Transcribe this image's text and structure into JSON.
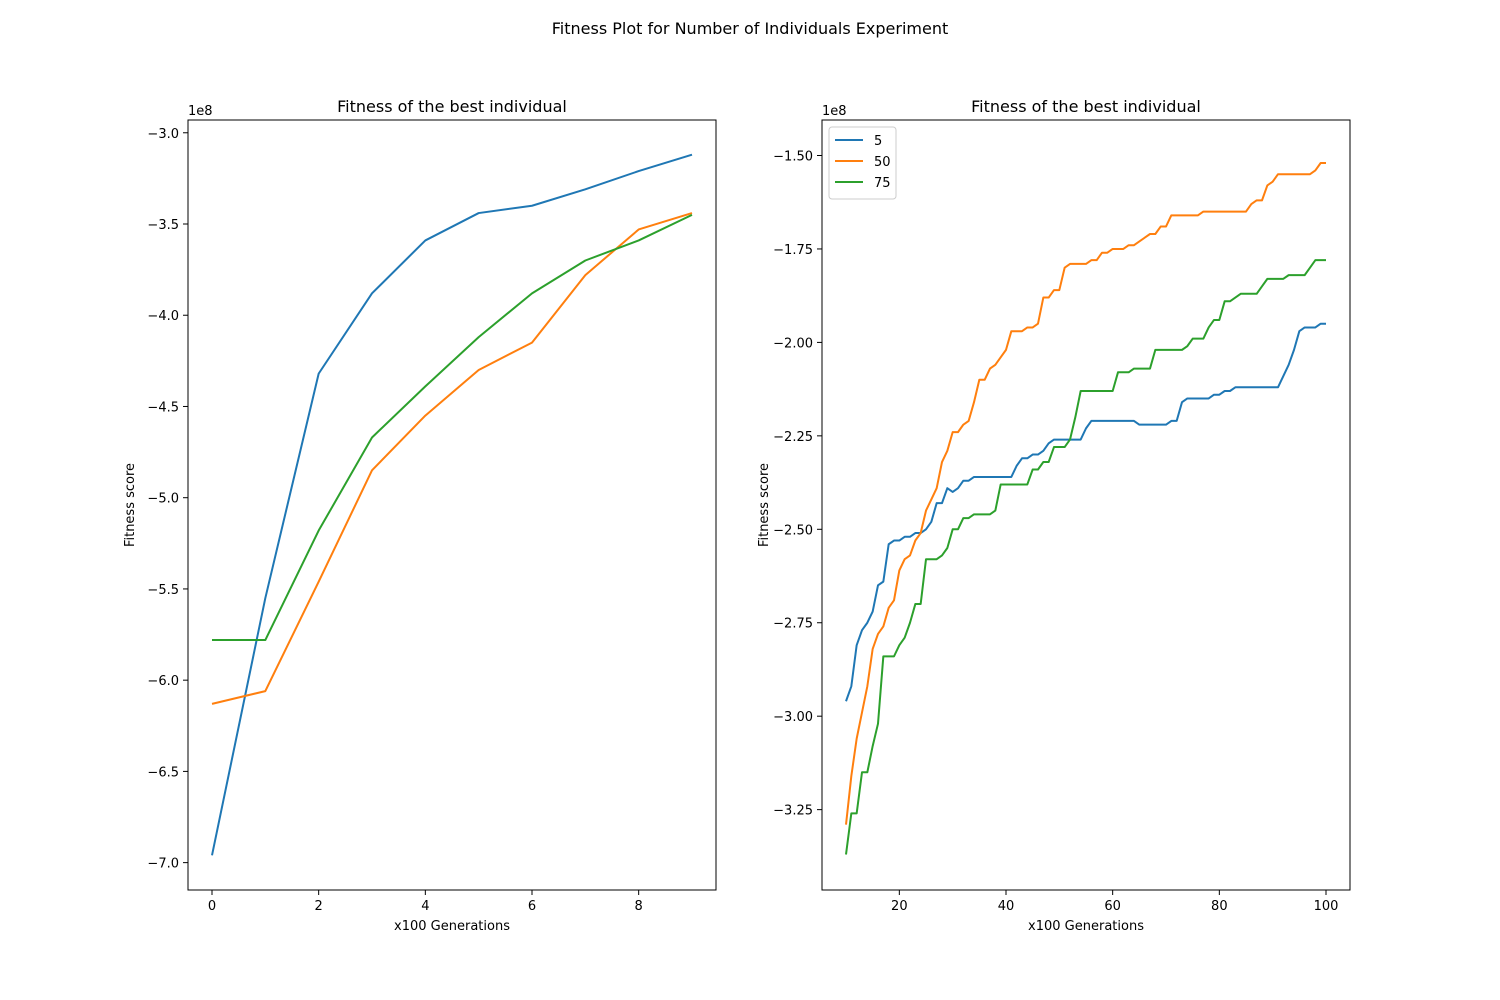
{
  "figure": {
    "suptitle": "Fitness Plot for Number of Individuals Experiment"
  },
  "chart_data": [
    {
      "type": "line",
      "title": "Fitness of the best individual",
      "xlabel": "x100 Generations",
      "ylabel": "Fitness score",
      "y_offset_label": "1e8",
      "xlim": [
        -0.45,
        9.45
      ],
      "ylim": [
        -7.15,
        -2.93
      ],
      "xticks": [
        0,
        2,
        4,
        6,
        8
      ],
      "xtick_labels": [
        "0",
        "2",
        "4",
        "6",
        "8"
      ],
      "yticks": [
        -7.0,
        -6.5,
        -6.0,
        -5.5,
        -5.0,
        -4.5,
        -4.0,
        -3.5,
        -3.0
      ],
      "ytick_labels": [
        "−7.0",
        "−6.5",
        "−6.0",
        "−5.5",
        "−5.0",
        "−4.5",
        "−4.0",
        "−3.5",
        "−3.0"
      ],
      "grid": false,
      "series": [
        {
          "color": "#1f77b4",
          "x": [
            0,
            1,
            2,
            3,
            4,
            5,
            6,
            7,
            8,
            9
          ],
          "y": [
            -6.96,
            -5.55,
            -4.32,
            -3.88,
            -3.59,
            -3.44,
            -3.4,
            -3.31,
            -3.21,
            -3.12
          ]
        },
        {
          "color": "#ff7f0e",
          "x": [
            0,
            1,
            2,
            3,
            4,
            5,
            6,
            7,
            8,
            9
          ],
          "y": [
            -6.13,
            -6.06,
            -5.46,
            -4.85,
            -4.55,
            -4.3,
            -4.15,
            -3.78,
            -3.53,
            -3.44
          ]
        },
        {
          "color": "#2ca02c",
          "x": [
            0,
            1,
            2,
            3,
            4,
            5,
            6,
            7,
            8,
            9
          ],
          "y": [
            -5.78,
            -5.78,
            -5.18,
            -4.67,
            -4.39,
            -4.12,
            -3.88,
            -3.7,
            -3.59,
            -3.45
          ]
        }
      ]
    },
    {
      "type": "line",
      "title": "Fitness of the best individual",
      "xlabel": "x100 Generations",
      "ylabel": "Fitness score",
      "y_offset_label": "1e8",
      "xlim": [
        5.5,
        104.5
      ],
      "ylim": [
        -3.465,
        -1.405
      ],
      "xticks": [
        20,
        40,
        60,
        80,
        100
      ],
      "xtick_labels": [
        "20",
        "40",
        "60",
        "80",
        "100"
      ],
      "yticks": [
        -3.25,
        -3.0,
        -2.75,
        -2.5,
        -2.25,
        -2.0,
        -1.75,
        -1.5
      ],
      "ytick_labels": [
        "−3.25",
        "−3.00",
        "−2.75",
        "−2.50",
        "−2.25",
        "−2.00",
        "−1.75",
        "−1.50"
      ],
      "grid": false,
      "legend": {
        "position": "top-left"
      },
      "series": [
        {
          "name": "5",
          "color": "#1f77b4",
          "x": [
            10,
            11,
            12,
            13,
            14,
            15,
            16,
            17,
            18,
            19,
            20,
            21,
            22,
            23,
            24,
            25,
            26,
            27,
            28,
            29,
            30,
            31,
            32,
            33,
            34,
            35,
            36,
            37,
            38,
            39,
            40,
            41,
            42,
            43,
            44,
            45,
            46,
            47,
            48,
            49,
            50,
            51,
            52,
            53,
            54,
            55,
            56,
            57,
            58,
            59,
            60,
            61,
            62,
            63,
            64,
            65,
            66,
            67,
            68,
            69,
            70,
            71,
            72,
            73,
            74,
            75,
            76,
            77,
            78,
            79,
            80,
            81,
            82,
            83,
            84,
            85,
            86,
            87,
            88,
            89,
            90,
            91,
            92,
            93,
            94,
            95,
            96,
            97,
            98,
            99,
            100
          ],
          "y": [
            -2.96,
            -2.92,
            -2.81,
            -2.77,
            -2.75,
            -2.72,
            -2.65,
            -2.64,
            -2.54,
            -2.53,
            -2.53,
            -2.52,
            -2.52,
            -2.51,
            -2.51,
            -2.5,
            -2.48,
            -2.43,
            -2.43,
            -2.39,
            -2.4,
            -2.39,
            -2.37,
            -2.37,
            -2.36,
            -2.36,
            -2.36,
            -2.36,
            -2.36,
            -2.36,
            -2.36,
            -2.36,
            -2.33,
            -2.31,
            -2.31,
            -2.3,
            -2.3,
            -2.29,
            -2.27,
            -2.26,
            -2.26,
            -2.26,
            -2.26,
            -2.26,
            -2.26,
            -2.23,
            -2.21,
            -2.21,
            -2.21,
            -2.21,
            -2.21,
            -2.21,
            -2.21,
            -2.21,
            -2.21,
            -2.22,
            -2.22,
            -2.22,
            -2.22,
            -2.22,
            -2.22,
            -2.21,
            -2.21,
            -2.16,
            -2.15,
            -2.15,
            -2.15,
            -2.15,
            -2.15,
            -2.14,
            -2.14,
            -2.13,
            -2.13,
            -2.12,
            -2.12,
            -2.12,
            -2.12,
            -2.12,
            -2.12,
            -2.12,
            -2.12,
            -2.12,
            -2.09,
            -2.06,
            -2.02,
            -1.97,
            -1.96,
            -1.96,
            -1.96,
            -1.95,
            -1.95
          ]
        },
        {
          "name": "50",
          "color": "#ff7f0e",
          "x": [
            10,
            11,
            12,
            13,
            14,
            15,
            16,
            17,
            18,
            19,
            20,
            21,
            22,
            23,
            24,
            25,
            26,
            27,
            28,
            29,
            30,
            31,
            32,
            33,
            34,
            35,
            36,
            37,
            38,
            39,
            40,
            41,
            42,
            43,
            44,
            45,
            46,
            47,
            48,
            49,
            50,
            51,
            52,
            53,
            54,
            55,
            56,
            57,
            58,
            59,
            60,
            61,
            62,
            63,
            64,
            65,
            66,
            67,
            68,
            69,
            70,
            71,
            72,
            73,
            74,
            75,
            76,
            77,
            78,
            79,
            80,
            81,
            82,
            83,
            84,
            85,
            86,
            87,
            88,
            89,
            90,
            91,
            92,
            93,
            94,
            95,
            96,
            97,
            98,
            99,
            100
          ],
          "y": [
            -3.29,
            -3.16,
            -3.06,
            -2.99,
            -2.92,
            -2.82,
            -2.78,
            -2.76,
            -2.71,
            -2.69,
            -2.61,
            -2.58,
            -2.57,
            -2.53,
            -2.51,
            -2.45,
            -2.42,
            -2.39,
            -2.32,
            -2.29,
            -2.24,
            -2.24,
            -2.22,
            -2.21,
            -2.16,
            -2.1,
            -2.1,
            -2.07,
            -2.06,
            -2.04,
            -2.02,
            -1.97,
            -1.97,
            -1.97,
            -1.96,
            -1.96,
            -1.95,
            -1.88,
            -1.88,
            -1.86,
            -1.86,
            -1.8,
            -1.79,
            -1.79,
            -1.79,
            -1.79,
            -1.78,
            -1.78,
            -1.76,
            -1.76,
            -1.75,
            -1.75,
            -1.75,
            -1.74,
            -1.74,
            -1.73,
            -1.72,
            -1.71,
            -1.71,
            -1.69,
            -1.69,
            -1.66,
            -1.66,
            -1.66,
            -1.66,
            -1.66,
            -1.66,
            -1.65,
            -1.65,
            -1.65,
            -1.65,
            -1.65,
            -1.65,
            -1.65,
            -1.65,
            -1.65,
            -1.63,
            -1.62,
            -1.62,
            -1.58,
            -1.57,
            -1.55,
            -1.55,
            -1.55,
            -1.55,
            -1.55,
            -1.55,
            -1.55,
            -1.54,
            -1.52,
            -1.52
          ]
        },
        {
          "name": "75",
          "color": "#2ca02c",
          "x": [
            10,
            11,
            12,
            13,
            14,
            15,
            16,
            17,
            18,
            19,
            20,
            21,
            22,
            23,
            24,
            25,
            26,
            27,
            28,
            29,
            30,
            31,
            32,
            33,
            34,
            35,
            36,
            37,
            38,
            39,
            40,
            41,
            42,
            43,
            44,
            45,
            46,
            47,
            48,
            49,
            50,
            51,
            52,
            53,
            54,
            55,
            56,
            57,
            58,
            59,
            60,
            61,
            62,
            63,
            64,
            65,
            66,
            67,
            68,
            69,
            70,
            71,
            72,
            73,
            74,
            75,
            76,
            77,
            78,
            79,
            80,
            81,
            82,
            83,
            84,
            85,
            86,
            87,
            88,
            89,
            90,
            91,
            92,
            93,
            94,
            95,
            96,
            97,
            98,
            99,
            100
          ],
          "y": [
            -3.37,
            -3.26,
            -3.26,
            -3.15,
            -3.15,
            -3.08,
            -3.02,
            -2.84,
            -2.84,
            -2.84,
            -2.81,
            -2.79,
            -2.75,
            -2.7,
            -2.7,
            -2.58,
            -2.58,
            -2.58,
            -2.57,
            -2.55,
            -2.5,
            -2.5,
            -2.47,
            -2.47,
            -2.46,
            -2.46,
            -2.46,
            -2.46,
            -2.45,
            -2.38,
            -2.38,
            -2.38,
            -2.38,
            -2.38,
            -2.38,
            -2.34,
            -2.34,
            -2.32,
            -2.32,
            -2.28,
            -2.28,
            -2.28,
            -2.26,
            -2.2,
            -2.13,
            -2.13,
            -2.13,
            -2.13,
            -2.13,
            -2.13,
            -2.13,
            -2.08,
            -2.08,
            -2.08,
            -2.07,
            -2.07,
            -2.07,
            -2.07,
            -2.02,
            -2.02,
            -2.02,
            -2.02,
            -2.02,
            -2.02,
            -2.01,
            -1.99,
            -1.99,
            -1.99,
            -1.96,
            -1.94,
            -1.94,
            -1.89,
            -1.89,
            -1.88,
            -1.87,
            -1.87,
            -1.87,
            -1.87,
            -1.85,
            -1.83,
            -1.83,
            -1.83,
            -1.83,
            -1.82,
            -1.82,
            -1.82,
            -1.82,
            -1.8,
            -1.78,
            -1.78,
            -1.78
          ]
        }
      ]
    }
  ]
}
